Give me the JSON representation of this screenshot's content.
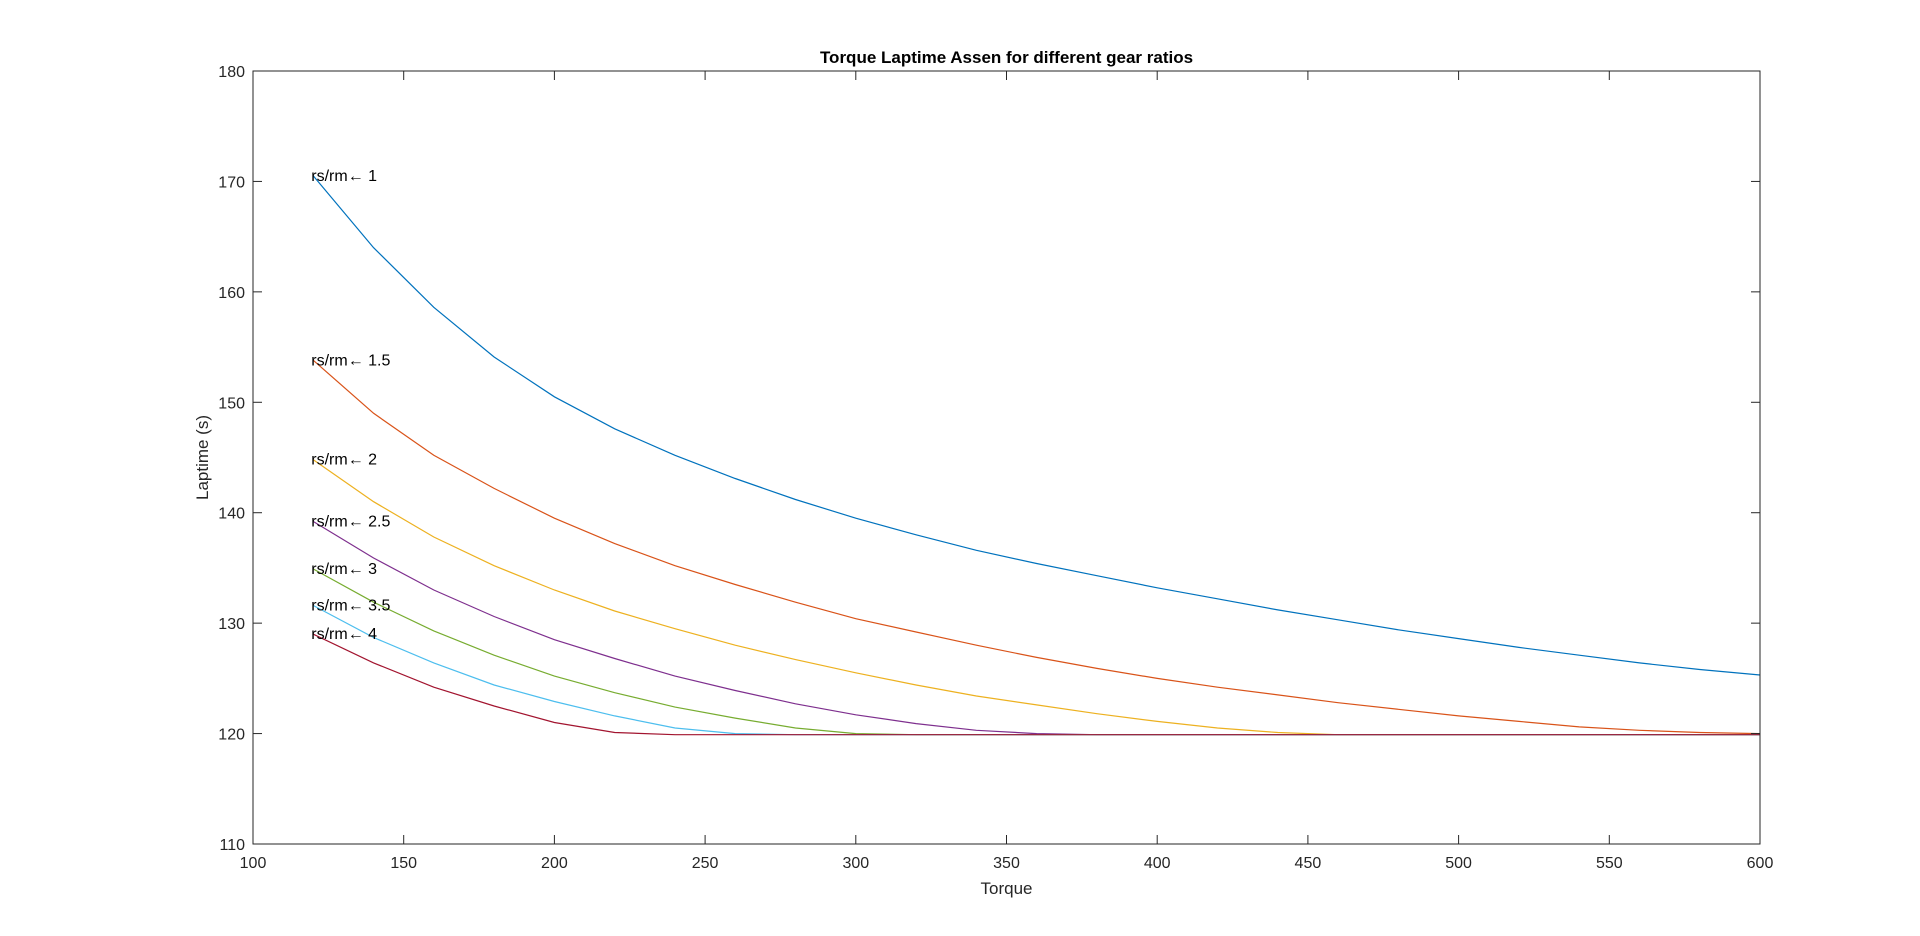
{
  "chart_data": {
    "type": "line",
    "title": "Torque Laptime Assen for different gear ratios",
    "xlabel": "Torque",
    "ylabel": "Laptime (s)",
    "xlim": [
      100,
      600
    ],
    "ylim": [
      110,
      180
    ],
    "xticks": [
      100,
      150,
      200,
      250,
      300,
      350,
      400,
      450,
      500,
      550,
      600
    ],
    "yticks": [
      110,
      120,
      130,
      140,
      150,
      160,
      170,
      180
    ],
    "grid": false,
    "box": true,
    "x": [
      120,
      140,
      160,
      180,
      200,
      220,
      240,
      260,
      280,
      300,
      320,
      340,
      360,
      380,
      400,
      420,
      440,
      460,
      480,
      500,
      520,
      540,
      560,
      580,
      600
    ],
    "series": [
      {
        "name": "",
        "label": "rs/rm← 1",
        "color": "#0072BD",
        "values": [
          170.5,
          164.0,
          158.6,
          154.1,
          150.5,
          147.6,
          145.2,
          143.1,
          141.2,
          139.5,
          138.0,
          136.6,
          135.4,
          134.3,
          133.2,
          132.2,
          131.2,
          130.3,
          129.4,
          128.6,
          127.8,
          127.1,
          126.4,
          125.8,
          125.3
        ]
      },
      {
        "name": "",
        "label": "rs/rm← 1.5",
        "color": "#D95319",
        "values": [
          153.8,
          149.0,
          145.2,
          142.2,
          139.5,
          137.2,
          135.2,
          133.5,
          131.9,
          130.4,
          129.2,
          128.0,
          126.9,
          125.9,
          125.0,
          124.2,
          123.5,
          122.8,
          122.2,
          121.6,
          121.1,
          120.6,
          120.3,
          120.1,
          120.0
        ]
      },
      {
        "name": "",
        "label": "rs/rm← 2",
        "color": "#EDB120",
        "values": [
          144.8,
          141.0,
          137.8,
          135.2,
          133.0,
          131.1,
          129.5,
          128.0,
          126.7,
          125.5,
          124.4,
          123.4,
          122.6,
          121.8,
          121.1,
          120.5,
          120.1,
          119.9,
          119.9,
          119.9,
          119.9,
          119.9,
          119.9,
          119.9,
          119.9
        ]
      },
      {
        "name": "",
        "label": "rs/rm← 2.5",
        "color": "#7E2F8E",
        "values": [
          139.2,
          135.9,
          133.0,
          130.6,
          128.5,
          126.8,
          125.2,
          123.9,
          122.7,
          121.7,
          120.9,
          120.3,
          120.0,
          119.9,
          119.9,
          119.9,
          119.9,
          119.9,
          119.9,
          119.9,
          119.9,
          119.9,
          119.9,
          119.9,
          119.9
        ]
      },
      {
        "name": "",
        "label": "rs/rm← 3",
        "color": "#77AC30",
        "values": [
          134.9,
          131.9,
          129.3,
          127.1,
          125.2,
          123.7,
          122.4,
          121.4,
          120.5,
          120.0,
          119.9,
          119.9,
          119.9,
          119.9,
          119.9,
          119.9,
          119.9,
          119.9,
          119.9,
          119.9,
          119.9,
          119.9,
          119.9,
          119.9,
          119.9
        ]
      },
      {
        "name": "",
        "label": "rs/rm← 3.5",
        "color": "#4DBEEE",
        "values": [
          131.6,
          128.7,
          126.4,
          124.4,
          122.9,
          121.6,
          120.5,
          120.0,
          119.9,
          119.9,
          119.9,
          119.9,
          119.9,
          119.9,
          119.9,
          119.9,
          119.9,
          119.9,
          119.9,
          119.9,
          119.9,
          119.9,
          119.9,
          119.9,
          119.9
        ]
      },
      {
        "name": "",
        "label": "rs/rm← 4",
        "color": "#A2142F",
        "values": [
          129.0,
          126.4,
          124.2,
          122.5,
          121.0,
          120.1,
          119.9,
          119.9,
          119.9,
          119.9,
          119.9,
          119.9,
          119.9,
          119.9,
          119.9,
          119.9,
          119.9,
          119.9,
          119.9,
          119.9,
          119.9,
          119.9,
          119.9,
          119.9,
          119.9
        ]
      }
    ]
  }
}
